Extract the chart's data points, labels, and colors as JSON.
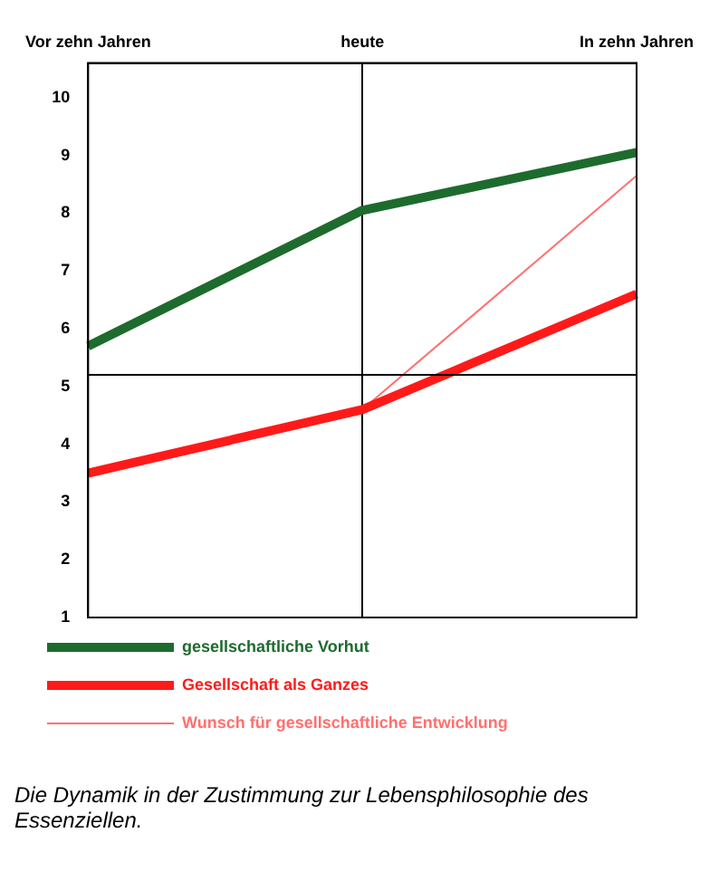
{
  "chart_data": {
    "type": "line",
    "categories": [
      "Vor zehn Jahren",
      "heute",
      "In zehn Jahren"
    ],
    "series": [
      {
        "name": "gesellschaftliche Vorhut",
        "color": "#1e6b2e",
        "values": [
          5.7,
          8.05,
          9.05
        ]
      },
      {
        "name": "Gesellschaft als Ganzes",
        "color": "#ff1a1a",
        "values": [
          3.5,
          4.6,
          6.6
        ]
      },
      {
        "name": "Wunsch für gesellschaftliche Entwicklung",
        "color": "#ff7070",
        "values": [
          null,
          4.6,
          8.65
        ]
      }
    ],
    "ylim": [
      1,
      10.6
    ],
    "yticks": [
      1,
      2,
      3,
      4,
      5,
      6,
      7,
      8,
      9,
      10
    ],
    "grid": "x",
    "legend": "bottom",
    "marker": "none",
    "line_style": "solid",
    "ref_lines": [
      {
        "axis": "y",
        "value": 5.2,
        "color": "#000000"
      }
    ],
    "annotations": [
      "Die Dynamik in der Zustimmung zur Lebensphilosophie des Essenziellen."
    ]
  }
}
